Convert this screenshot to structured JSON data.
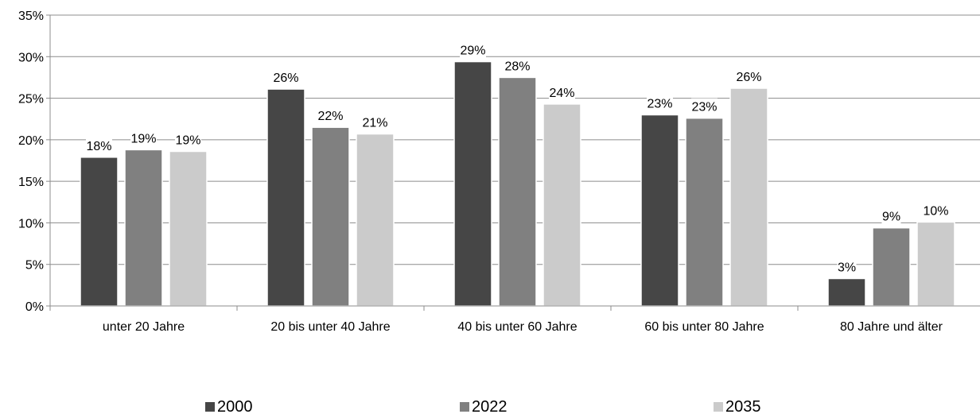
{
  "chart_data": {
    "type": "bar",
    "title": "",
    "xlabel": "",
    "ylabel": "",
    "ylim": [
      0,
      35
    ],
    "y_ticks": [
      0,
      5,
      10,
      15,
      20,
      25,
      30,
      35
    ],
    "y_tick_labels": [
      "0%",
      "5%",
      "10%",
      "15%",
      "20%",
      "25%",
      "30%",
      "35%"
    ],
    "grid": "horizontal",
    "legend_position": "bottom",
    "categories": [
      "unter 20 Jahre",
      "20 bis unter 40 Jahre",
      "40 bis unter 60 Jahre",
      "60 bis unter 80 Jahre",
      "80 Jahre und älter"
    ],
    "series": [
      {
        "name": "2000",
        "color": "#464646",
        "values": [
          17.9,
          26.1,
          29.4,
          23.0,
          3.3
        ],
        "labels": [
          "18%",
          "26%",
          "29%",
          "23%",
          "3%"
        ]
      },
      {
        "name": "2022",
        "color": "#808080",
        "values": [
          18.8,
          21.5,
          27.5,
          22.6,
          9.4
        ],
        "labels": [
          "19%",
          "22%",
          "28%",
          "23%",
          "9%"
        ]
      },
      {
        "name": "2035",
        "color": "#cbcbcb",
        "values": [
          18.6,
          20.7,
          24.3,
          26.2,
          10.1
        ],
        "labels": [
          "19%",
          "21%",
          "24%",
          "26%",
          "10%"
        ]
      }
    ]
  }
}
